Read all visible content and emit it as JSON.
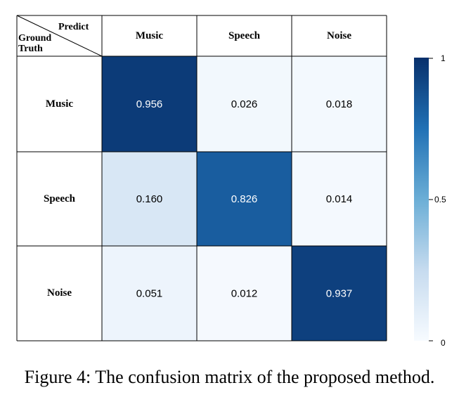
{
  "chart_data": {
    "type": "heatmap",
    "title": "",
    "row_axis_label": "Ground Truth",
    "col_axis_label": "Predict",
    "rows": [
      "Music",
      "Speech",
      "Noise"
    ],
    "cols": [
      "Music",
      "Speech",
      "Noise"
    ],
    "values": [
      [
        "0.956",
        "0.026",
        "0.018"
      ],
      [
        "0.160",
        "0.826",
        "0.014"
      ],
      [
        "0.051",
        "0.012",
        "0.937"
      ]
    ],
    "colorbar": {
      "range": [
        0,
        1
      ],
      "ticks": [
        "1",
        "0.5",
        "0"
      ],
      "colormap": "Blues"
    }
  },
  "caption": "Figure 4: The confusion matrix of the proposed method."
}
